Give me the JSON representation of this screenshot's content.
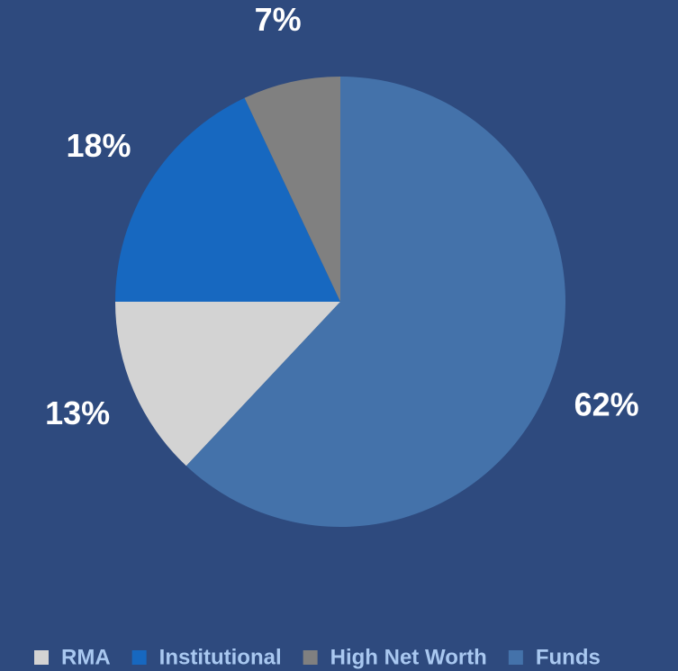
{
  "chart_data": {
    "type": "pie",
    "categories": [
      "RMA",
      "Institutional",
      "High Net Worth",
      "Funds"
    ],
    "values": [
      13,
      18,
      7,
      62
    ],
    "value_labels": [
      "13%",
      "18%",
      "7%",
      "62%"
    ],
    "colors": [
      "#d3d3d3",
      "#1768c0",
      "#808080",
      "#4472aa"
    ],
    "legend": "bottom"
  }
}
